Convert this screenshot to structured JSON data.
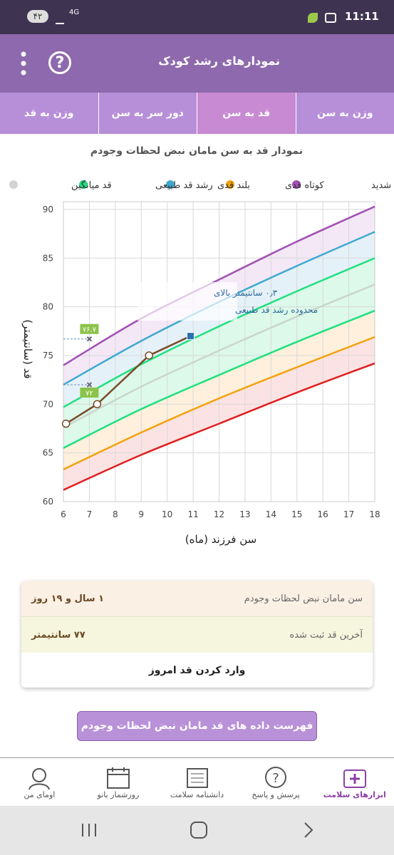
{
  "status_bar": {
    "time": "11:11",
    "battery": "۴۲",
    "network": "4G"
  },
  "header": {
    "title": "نمودارهای رشد کودک"
  },
  "tabs": [
    "وزن به سن",
    "قد به سن",
    "دور سر به سن",
    "وزن به قد"
  ],
  "chart_data": {
    "type": "line",
    "title": "نمودار قد به سن مامان نبض لحظات وجودم",
    "legend": [
      {
        "name": "بلند قدی شدید",
        "color": "#a24fb5"
      },
      {
        "name": "کوتاه قدی",
        "color": "#f2a20c"
      },
      {
        "name": "بلند قدی",
        "color": "#3fa9d0"
      },
      {
        "name": "رشد قد طبیعی",
        "color": "#1fe07f"
      },
      {
        "name": "قد میانگین",
        "color": "#d3d3d3"
      }
    ],
    "x": [
      6,
      9,
      12,
      15,
      18
    ],
    "series": [
      {
        "color": "#a24fb5",
        "values": [
          74,
          78.8,
          82.8,
          86.7,
          90.3
        ]
      },
      {
        "color": "#3fa9d0",
        "values": [
          72,
          76.5,
          80.5,
          84.2,
          87.7
        ]
      },
      {
        "color": "#1fe07f",
        "values": [
          69.7,
          74.1,
          78,
          81.6,
          85
        ]
      },
      {
        "color": "#c9d6cc",
        "values": [
          67.6,
          71.8,
          75.5,
          79,
          82.3
        ]
      },
      {
        "color": "#1fe07f",
        "values": [
          65.5,
          69.5,
          73,
          76.4,
          79.6
        ]
      },
      {
        "color": "#f2a20c",
        "values": [
          63.3,
          67.1,
          70.6,
          73.8,
          76.9
        ]
      },
      {
        "color": "#e01f1f",
        "values": [
          61.2,
          64.8,
          68,
          71.2,
          74.2
        ]
      }
    ],
    "band_colors": [
      "#f0e0f4",
      "#dcecf6",
      "#d2f7e3",
      "#d2f7e3",
      "#fdebd0",
      "#fbd9d9"
    ],
    "child": {
      "color": "#7a4a2a",
      "x": [
        6.1,
        7.3,
        9.3,
        10.9
      ],
      "values": [
        68,
        70,
        75,
        77
      ]
    },
    "markers": [
      {
        "x": 7,
        "value": 76.7,
        "label": "۷۶.۷"
      },
      {
        "x": 7,
        "value": 72,
        "label": "۷۲"
      }
    ],
    "annotation": [
      "۰٫۳ سانتیمتر بالای",
      "محدوده رشد قد طبیعی"
    ],
    "xlabel": "سن فرزند (ماه)",
    "ylabel": "قد (سانتیمتر)",
    "xlim": [
      6,
      18
    ],
    "ylim": [
      60,
      90.8
    ],
    "xticks": [
      6,
      7,
      8,
      9,
      10,
      11,
      12,
      13,
      14,
      15,
      16,
      17,
      18
    ],
    "yticks": [
      60,
      65,
      70,
      75,
      80,
      85,
      90
    ],
    "grid": true
  },
  "info_card": {
    "rows": [
      {
        "label": "سن مامان نبض لحظات وجودم",
        "value": "۱ سال و ۱۹ روز"
      },
      {
        "label": "آخرین قد ثبت شده",
        "value": "۷۷ سانتیمتر"
      }
    ],
    "action": "وارد کردن قد امروز"
  },
  "list_button": "فهرست داده های قد مامان نبض لحظات وجودم",
  "bottom_nav": [
    "ابزارهای سلامت",
    "پرسش و پاسخ",
    "دانشنامه سلامت",
    "روزشمار بانو",
    "اومای من"
  ]
}
